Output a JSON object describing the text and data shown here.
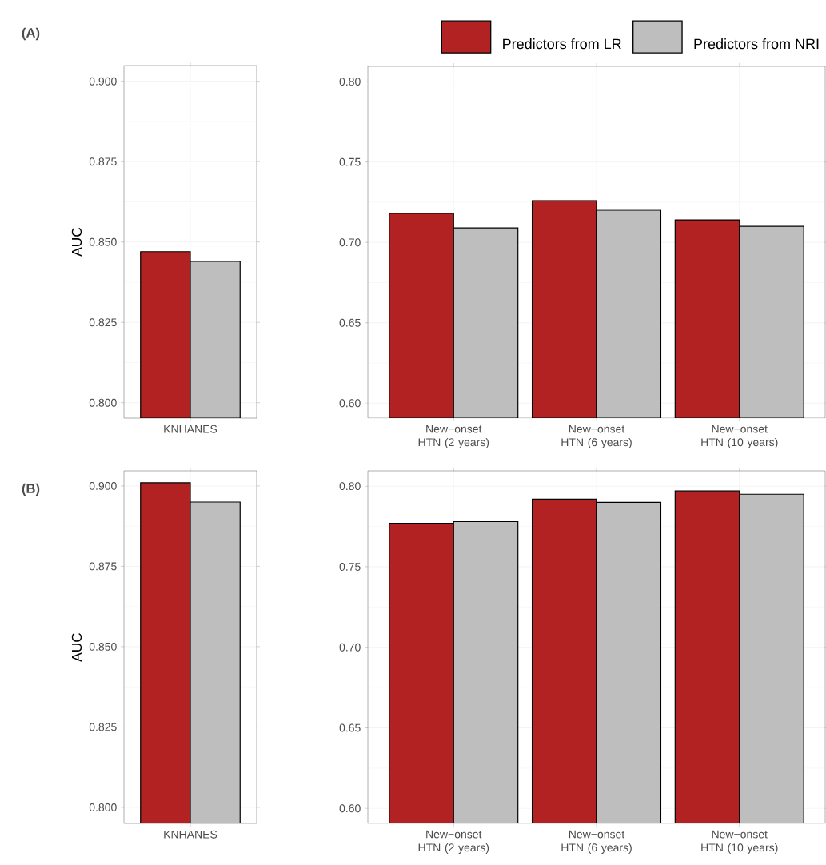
{
  "chart_data": [
    {
      "type": "bar",
      "annotations": [
        "(A)"
      ],
      "ylabel": "AUC",
      "categories": [
        "KNHANES"
      ],
      "grid": true,
      "ylim": [
        0.7952,
        0.9049
      ],
      "yticks": [
        {
          "value": 0.8,
          "label": "0.800"
        },
        {
          "value": 0.825,
          "label": "0.825"
        },
        {
          "value": 0.85,
          "label": "0.850"
        },
        {
          "value": 0.875,
          "label": "0.875"
        },
        {
          "value": 0.9,
          "label": "0.900"
        }
      ],
      "series": [
        {
          "color": "#b22222",
          "values": [
            0.847
          ]
        },
        {
          "color": "#bebebe",
          "values": [
            0.844
          ]
        }
      ]
    },
    {
      "type": "bar",
      "categories": [
        "New−onset HTN (2 years)",
        "New−onset HTN (6 years)",
        "New−onset HTN (10 years)"
      ],
      "grid": true,
      "legend": "top",
      "ylim": [
        0.5907,
        0.8095
      ],
      "yticks": [
        {
          "value": 0.6,
          "label": "0.60"
        },
        {
          "value": 0.65,
          "label": "0.65"
        },
        {
          "value": 0.7,
          "label": "0.70"
        },
        {
          "value": 0.75,
          "label": "0.75"
        },
        {
          "value": 0.8,
          "label": "0.80"
        }
      ],
      "series": [
        {
          "name": "Predictors from LR",
          "color": "#b22222",
          "values": [
            0.718,
            0.726,
            0.714
          ]
        },
        {
          "name": "Predictors from NRI",
          "color": "#bebebe",
          "values": [
            0.709,
            0.72,
            0.71
          ]
        }
      ]
    },
    {
      "type": "bar",
      "annotations": [
        "(B)"
      ],
      "ylabel": "AUC",
      "categories": [
        "KNHANES"
      ],
      "grid": true,
      "ylim": [
        0.795,
        0.9047
      ],
      "yticks": [
        {
          "value": 0.8,
          "label": "0.800"
        },
        {
          "value": 0.825,
          "label": "0.825"
        },
        {
          "value": 0.85,
          "label": "0.850"
        },
        {
          "value": 0.875,
          "label": "0.875"
        },
        {
          "value": 0.9,
          "label": "0.900"
        }
      ],
      "series": [
        {
          "color": "#b22222",
          "values": [
            0.901
          ]
        },
        {
          "color": "#bebebe",
          "values": [
            0.895
          ]
        }
      ]
    },
    {
      "type": "bar",
      "categories": [
        "New−onset HTN (2 years)",
        "New−onset HTN (6 years)",
        "New−onset HTN (10 years)"
      ],
      "grid": true,
      "ylim": [
        0.5907,
        0.8095
      ],
      "yticks": [
        {
          "value": 0.6,
          "label": "0.60"
        },
        {
          "value": 0.65,
          "label": "0.65"
        },
        {
          "value": 0.7,
          "label": "0.70"
        },
        {
          "value": 0.75,
          "label": "0.75"
        },
        {
          "value": 0.8,
          "label": "0.80"
        }
      ],
      "series": [
        {
          "color": "#b22222",
          "values": [
            0.777,
            0.792,
            0.797
          ]
        },
        {
          "color": "#bebebe",
          "values": [
            0.778,
            0.79,
            0.795
          ]
        }
      ]
    }
  ]
}
